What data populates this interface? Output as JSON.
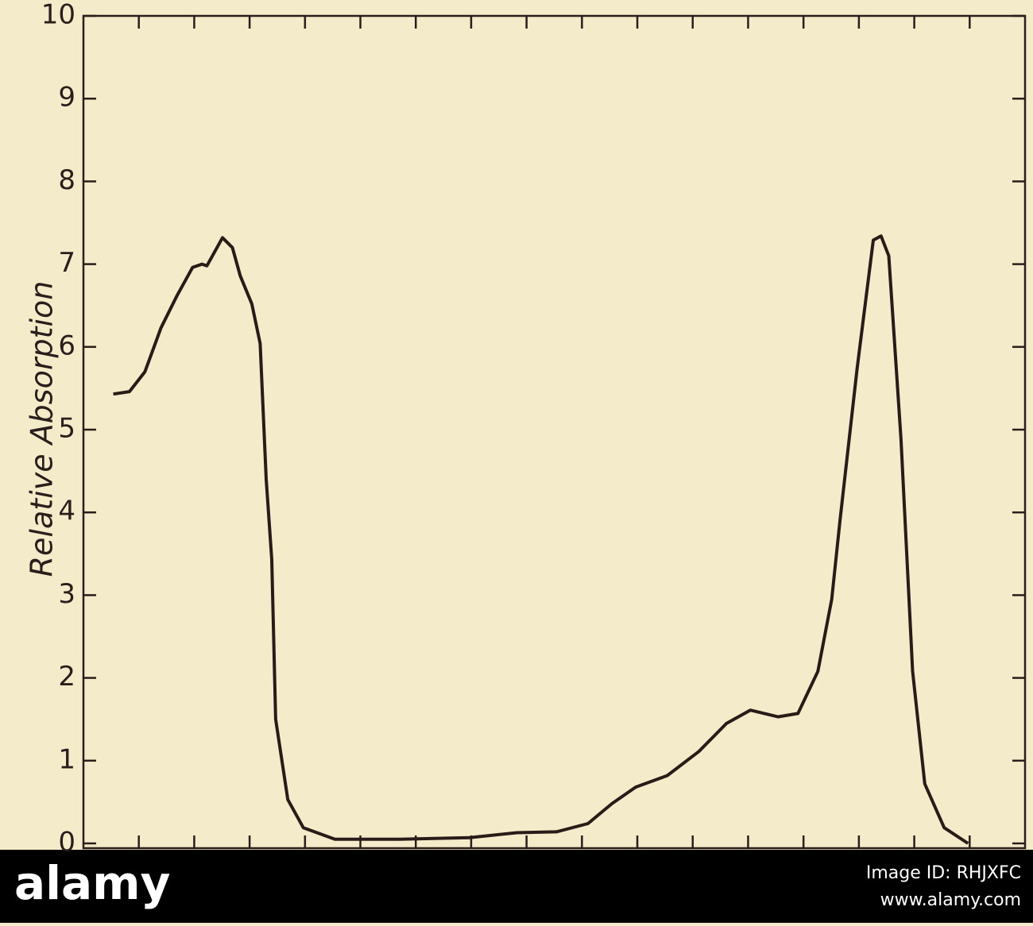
{
  "chart_data": {
    "type": "line",
    "y_label": "Relative Absorption",
    "color": "#2a1a18",
    "x": [
      0.54,
      0.83,
      1.11,
      1.4,
      1.69,
      1.97,
      2.14,
      2.23,
      2.51,
      2.69,
      2.83,
      3.04,
      3.19,
      3.3,
      3.4,
      3.47,
      3.69,
      3.97,
      4.54,
      5.69,
      6.97,
      7.83,
      8.54,
      9.11,
      9.54,
      9.97,
      10.54,
      11.11,
      11.61,
      12.04,
      12.54,
      12.9,
      13.26,
      13.51,
      13.66,
      13.97,
      14.26,
      14.4,
      14.54,
      14.76,
      14.97,
      15.19,
      15.54,
      15.97
    ],
    "values": [
      5.43,
      5.46,
      5.7,
      6.23,
      6.62,
      6.96,
      7.0,
      6.98,
      7.32,
      7.2,
      6.86,
      6.52,
      6.04,
      4.4,
      3.43,
      1.5,
      0.53,
      0.19,
      0.05,
      0.05,
      0.07,
      0.13,
      0.14,
      0.24,
      0.48,
      0.68,
      0.82,
      1.11,
      1.45,
      1.61,
      1.53,
      1.57,
      2.08,
      2.95,
      3.91,
      5.75,
      7.29,
      7.34,
      7.1,
      4.88,
      2.08,
      0.72,
      0.19,
      0.0
    ],
    "xlim": [
      0,
      17
    ],
    "xticks": [
      1,
      2,
      3,
      4,
      5,
      6,
      7,
      8,
      9,
      10,
      11,
      12,
      13,
      14,
      15,
      16
    ],
    "ylim": [
      0,
      10
    ],
    "yticks": [
      0,
      1,
      2,
      3,
      4,
      5,
      6,
      7,
      8,
      9,
      10
    ]
  },
  "watermark": {
    "logo": "alamy",
    "image_id": "Image ID: RHJXFC",
    "url": "www.alamy.com"
  }
}
